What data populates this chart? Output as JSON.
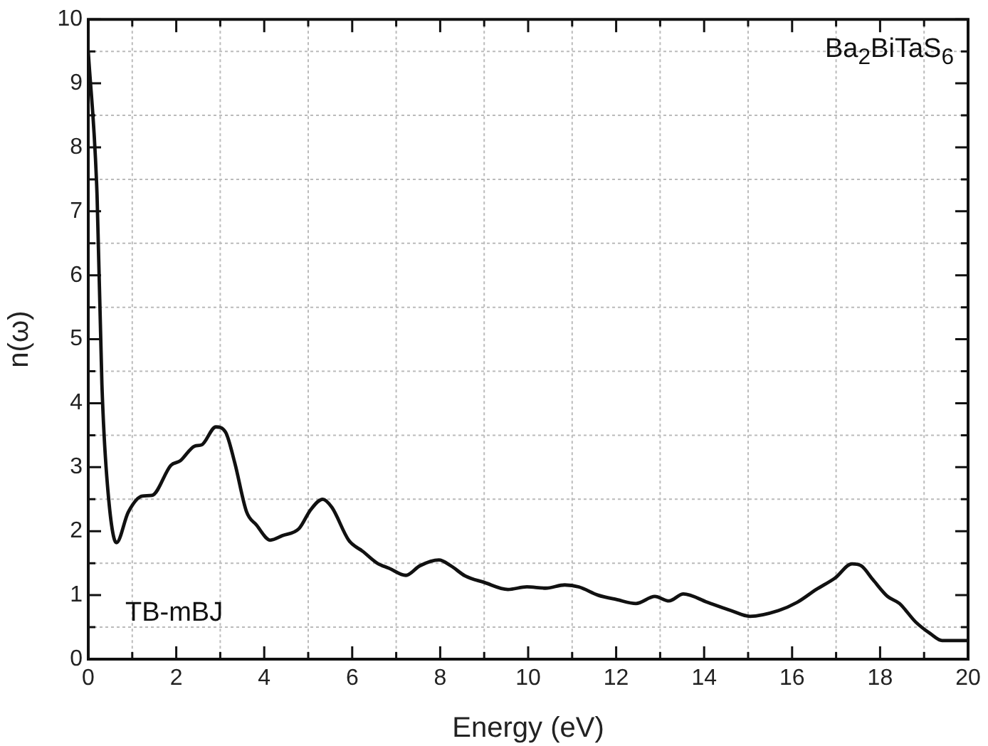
{
  "chart_data": {
    "type": "line",
    "xlabel": "Energy (eV)",
    "ylabel": "n(ω)",
    "annotations": [
      "Ba$_{2}$BiTaS$_{6}$",
      "TB-mBJ"
    ],
    "xlim": [
      0,
      20
    ],
    "ylim": [
      0,
      10
    ],
    "xticks": [
      0,
      {
        "value": 1,
        "label": null
      },
      2,
      {
        "value": 3,
        "label": null
      },
      4,
      {
        "value": 5,
        "label": null
      },
      6,
      {
        "value": 7,
        "label": null
      },
      8,
      {
        "value": 9,
        "label": null
      },
      10,
      {
        "value": 11,
        "label": null
      },
      12,
      {
        "value": 13,
        "label": null
      },
      14,
      {
        "value": 15,
        "label": null
      },
      16,
      {
        "value": 17,
        "label": null
      },
      18,
      {
        "value": 19,
        "label": null
      },
      20
    ],
    "yticks": [
      0,
      {
        "value": 0.5,
        "label": null
      },
      1,
      {
        "value": 1.5,
        "label": null
      },
      2,
      {
        "value": 2.5,
        "label": null
      },
      3,
      {
        "value": 3.5,
        "label": null
      },
      4,
      {
        "value": 4.5,
        "label": null
      },
      5,
      {
        "value": 5.5,
        "label": null
      },
      6,
      {
        "value": 6.5,
        "label": null
      },
      7,
      {
        "value": 7.5,
        "label": null
      },
      8,
      {
        "value": 8.5,
        "label": null
      },
      9,
      {
        "value": 9.5,
        "label": null
      },
      10
    ],
    "grid": true,
    "line_style": "solid",
    "marker": "none",
    "x": [
      0,
      0.2,
      0.31,
      0.42,
      0.64,
      0.91,
      1.23,
      1.45,
      1.88,
      2.09,
      2.42,
      2.58,
      2.9,
      3.12,
      3.33,
      3.6,
      3.82,
      4.14,
      4.41,
      4.79,
      5.06,
      5.33,
      5.54,
      5.92,
      6.25,
      6.57,
      6.84,
      7.22,
      7.54,
      7.97,
      8.24,
      8.57,
      9.0,
      9.54,
      9.97,
      10.4,
      10.83,
      11.15,
      11.59,
      12.02,
      12.45,
      12.88,
      13.2,
      13.53,
      14.07,
      14.61,
      15.04,
      15.69,
      16.12,
      16.55,
      16.98,
      17.36,
      17.57,
      17.84,
      18.17,
      18.44,
      18.81,
      19.14,
      19.41,
      20
    ],
    "series": [
      {
        "color": "#111111",
        "values": [
          9.5,
          7.25,
          4.3,
          2.86,
          1.82,
          2.3,
          2.55,
          2.56,
          3.03,
          3.1,
          3.33,
          3.35,
          3.63,
          3.55,
          3.07,
          2.3,
          2.1,
          1.86,
          1.93,
          2.04,
          2.34,
          2.5,
          2.37,
          1.86,
          1.68,
          1.5,
          1.42,
          1.31,
          1.46,
          1.55,
          1.46,
          1.3,
          1.2,
          1.09,
          1.13,
          1.11,
          1.16,
          1.13,
          1.0,
          0.93,
          0.87,
          0.98,
          0.91,
          1.02,
          0.89,
          0.76,
          0.67,
          0.76,
          0.89,
          1.09,
          1.27,
          1.49,
          1.46,
          1.24,
          0.98,
          0.87,
          0.58,
          0.4,
          0.29,
          0.29
        ]
      }
    ]
  }
}
